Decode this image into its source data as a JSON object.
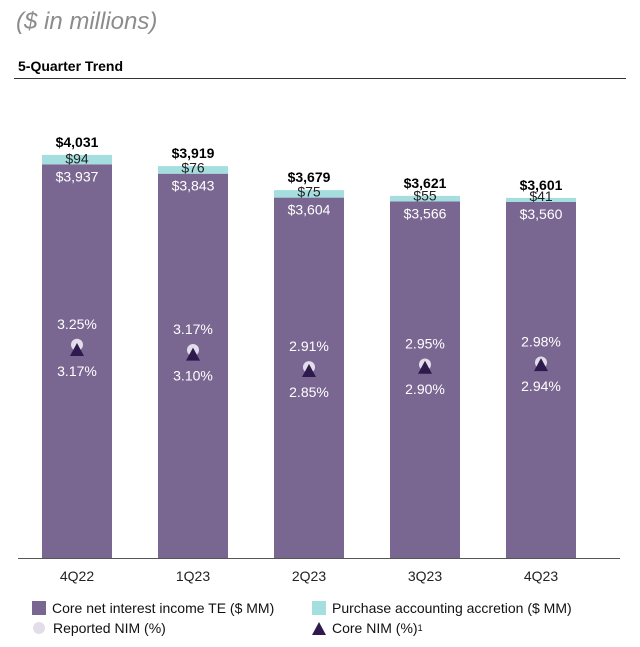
{
  "header": {
    "units": "($ in millions)",
    "subtitle": "5-Quarter Trend"
  },
  "colors": {
    "core_nii": "#7a6791",
    "accretion": "#a5dede",
    "reported_nim": "#e3dde9",
    "core_nim": "#2d1b4e",
    "axis": "#555555"
  },
  "legend": {
    "core_nii": "Core net interest income TE ($ MM)",
    "accretion": "Purchase accounting accretion ($ MM)",
    "reported_nim": "Reported NIM (%)",
    "core_nim": "Core NIM (%)",
    "core_nim_footnote": "1"
  },
  "chart_data": {
    "type": "bar",
    "categories": [
      "4Q22",
      "1Q23",
      "2Q23",
      "3Q23",
      "4Q23"
    ],
    "stacked": true,
    "ylim": [
      0,
      4200
    ],
    "series": [
      {
        "name": "Core net interest income TE ($ MM)",
        "values": [
          3937,
          3843,
          3604,
          3566,
          3560
        ],
        "labels": [
          "$3,937",
          "$3,843",
          "$3,604",
          "$3,566",
          "$3,560"
        ]
      },
      {
        "name": "Purchase accounting accretion ($ MM)",
        "values": [
          94,
          76,
          75,
          55,
          41
        ],
        "labels": [
          "$94",
          "$76",
          "$75",
          "$55",
          "$41"
        ]
      }
    ],
    "totals": [
      4031,
      3919,
      3679,
      3621,
      3601
    ],
    "total_labels": [
      "$4,031",
      "$3,919",
      "$3,679",
      "$3,621",
      "$3,601"
    ],
    "nim": {
      "reported": {
        "name": "Reported NIM (%)",
        "values": [
          3.25,
          3.17,
          2.91,
          2.95,
          2.98
        ],
        "labels": [
          "3.25%",
          "3.17%",
          "2.91%",
          "2.95%",
          "2.98%"
        ]
      },
      "core": {
        "name": "Core NIM (%)",
        "values": [
          3.17,
          3.1,
          2.85,
          2.9,
          2.94
        ],
        "labels": [
          "3.17%",
          "3.10%",
          "2.85%",
          "2.90%",
          "2.94%"
        ]
      },
      "ylim": [
        0,
        5.1
      ]
    },
    "grid": false,
    "legend_position": "bottom"
  }
}
